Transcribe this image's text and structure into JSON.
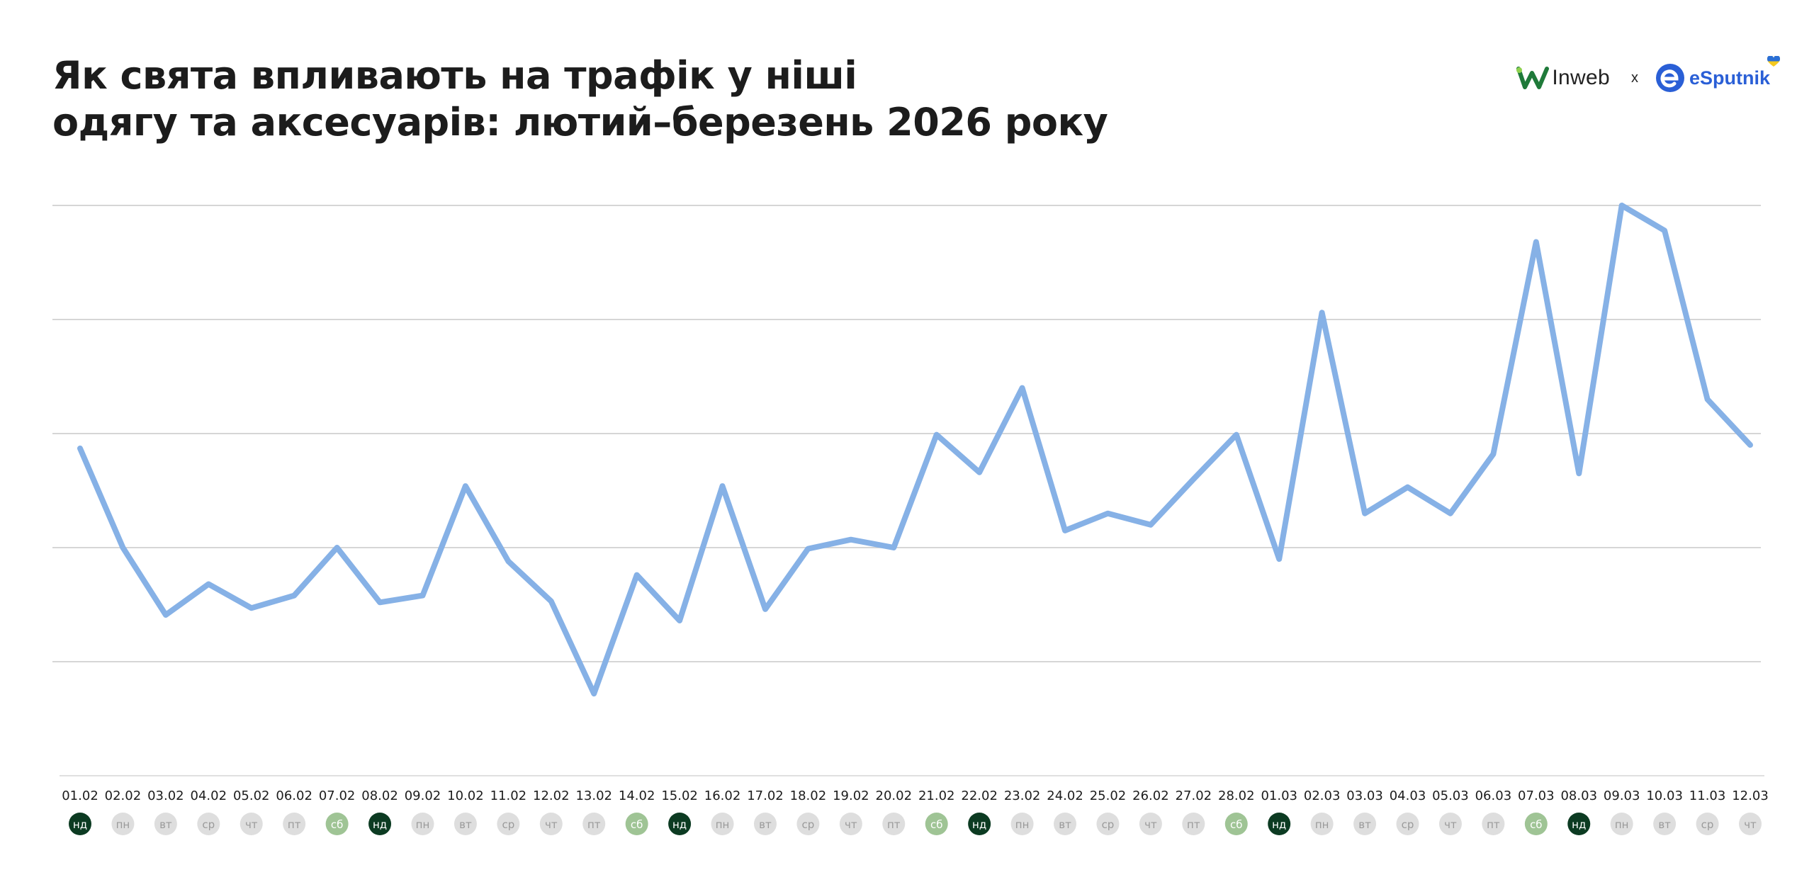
{
  "title": {
    "line1": "Як свята впливають на трафік у ніші",
    "line2": "одягу та аксесуарів: лютий–березень 2026 року"
  },
  "logos": {
    "inweb": "Inweb",
    "separator": "x",
    "esputnik": "eSputnik"
  },
  "colors": {
    "line": "#86b1e6",
    "grid": "#c9c9c9",
    "sunday_badge": "#0c3b22",
    "saturday_badge": "#9fc495",
    "weekday_badge": "#dedede",
    "weekday_text": "#9a9a9a",
    "weekend_text": "#ffffff"
  },
  "chart_data": {
    "type": "line",
    "title": "",
    "xlabel": "",
    "ylabel": "",
    "ylim": [
      0,
      5
    ],
    "y_gridlines": [
      1,
      2,
      3,
      4,
      5
    ],
    "y_tick_labels_shown": false,
    "grid": true,
    "categories": [
      "01.02",
      "02.02",
      "03.02",
      "04.02",
      "05.02",
      "06.02",
      "07.02",
      "08.02",
      "09.02",
      "10.02",
      "11.02",
      "12.02",
      "13.02",
      "14.02",
      "15.02",
      "16.02",
      "17.02",
      "18.02",
      "19.02",
      "20.02",
      "21.02",
      "22.02",
      "23.02",
      "24.02",
      "25.02",
      "26.02",
      "27.02",
      "28.02",
      "01.03",
      "02.03",
      "03.03",
      "04.03",
      "05.03",
      "06.03",
      "07.03",
      "08.03",
      "09.03",
      "10.03",
      "11.03",
      "12.03"
    ],
    "weekdays": [
      "нд",
      "пн",
      "вт",
      "ср",
      "чт",
      "пт",
      "сб",
      "нд",
      "пн",
      "вт",
      "ср",
      "чт",
      "пт",
      "сб",
      "нд",
      "пн",
      "вт",
      "ср",
      "чт",
      "пт",
      "сб",
      "нд",
      "пн",
      "вт",
      "ср",
      "чт",
      "пт",
      "сб",
      "нд",
      "пн",
      "вт",
      "ср",
      "чт",
      "пт",
      "сб",
      "нд",
      "пн",
      "вт",
      "ср",
      "чт"
    ],
    "values": [
      2.87,
      2.0,
      1.41,
      1.68,
      1.47,
      1.58,
      2.0,
      1.52,
      1.58,
      2.54,
      1.88,
      1.53,
      0.72,
      1.76,
      1.36,
      2.54,
      1.46,
      1.99,
      2.07,
      2.0,
      2.99,
      2.66,
      3.4,
      2.15,
      2.3,
      2.2,
      2.6,
      2.99,
      1.9,
      4.06,
      2.3,
      2.53,
      2.3,
      2.82,
      4.68,
      2.65,
      5.0,
      4.78,
      3.3,
      2.9
    ]
  }
}
